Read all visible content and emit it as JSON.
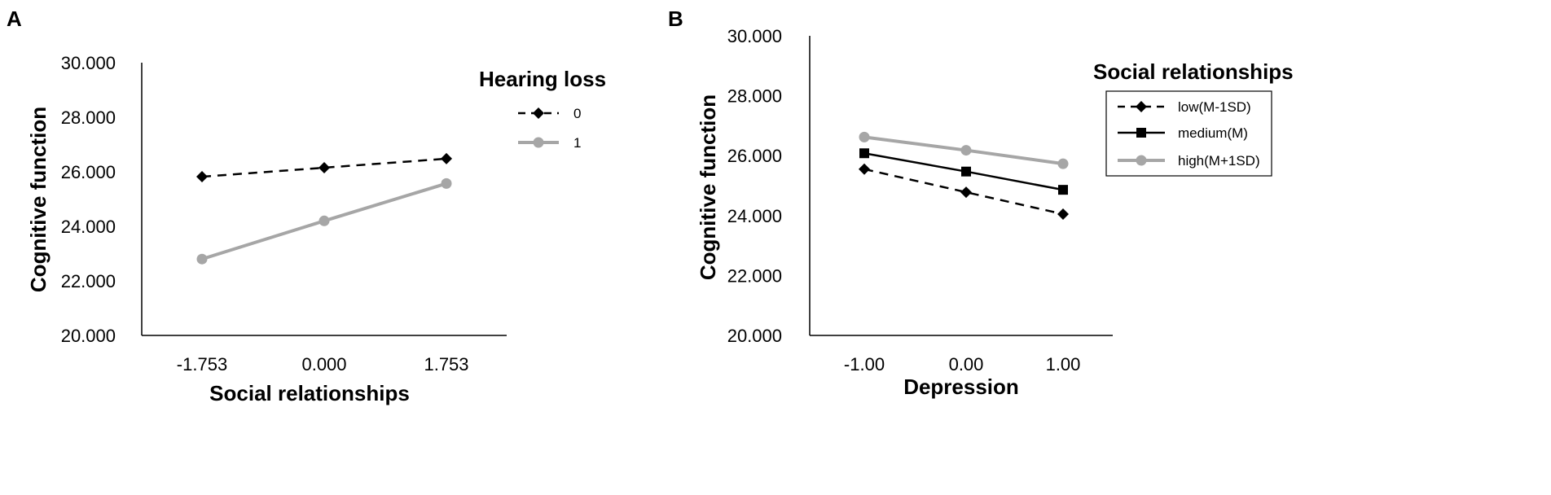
{
  "chart_data": [
    {
      "type": "line",
      "panel_label": "A",
      "xlabel": "Social relationships",
      "ylabel": "Cognitive function",
      "categories": [
        "-1.753",
        "0.000",
        "1.753"
      ],
      "yticks": [
        "20.000",
        "22.000",
        "24.000",
        "26.000",
        "28.000",
        "30.000"
      ],
      "ylim": [
        20,
        30
      ],
      "legend_title": "Hearing loss",
      "legend_position": "right",
      "series": [
        {
          "name": "0",
          "values": [
            25.82,
            26.15,
            26.48
          ],
          "color": "#000000",
          "dash": true,
          "marker": "diamond"
        },
        {
          "name": "1",
          "values": [
            22.8,
            24.2,
            25.57
          ],
          "color": "#a6a6a6",
          "dash": false,
          "marker": "circle"
        }
      ]
    },
    {
      "type": "line",
      "panel_label": "B",
      "xlabel": "Depression",
      "ylabel": "Cognitive function",
      "categories": [
        "-1.00",
        "0.00",
        "1.00"
      ],
      "yticks": [
        "20.000",
        "22.000",
        "24.000",
        "26.000",
        "28.000",
        "30.000"
      ],
      "ylim": [
        20,
        30
      ],
      "legend_title": "Social relationships",
      "legend_position": "right",
      "series": [
        {
          "name": "low(M-1SD)",
          "values": [
            25.55,
            24.78,
            24.05
          ],
          "color": "#000000",
          "dash": true,
          "marker": "diamond"
        },
        {
          "name": "medium(M)",
          "values": [
            26.08,
            25.47,
            24.86
          ],
          "color": "#000000",
          "dash": false,
          "marker": "square"
        },
        {
          "name": "high(M+1SD)",
          "values": [
            26.62,
            26.18,
            25.73
          ],
          "color": "#a6a6a6",
          "dash": false,
          "marker": "circle"
        }
      ]
    }
  ]
}
